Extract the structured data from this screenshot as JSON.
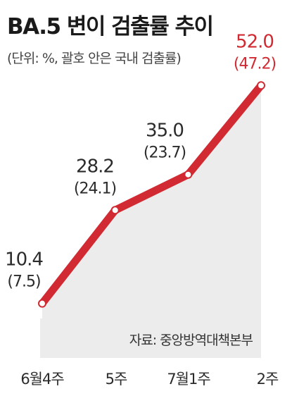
{
  "title": "BA.5 변이 검출률 추이",
  "subtitle": "(단위: %, 괄호 안은 국내 검출률)",
  "source": "자료: 중앙방역대책본부",
  "colors": {
    "line": "#d12a32",
    "area": "#ececec",
    "label": "#2b2b2b",
    "highlight": "#d12a32"
  },
  "chart_data": {
    "type": "area",
    "categories": [
      "6월4주",
      "5주",
      "7월1주",
      "2주"
    ],
    "series": [
      {
        "values": [
          10.4,
          28.2,
          35.0,
          52.0
        ]
      }
    ],
    "secondary_values": [
      7.5,
      24.1,
      23.7,
      47.2
    ],
    "value_labels": [
      "10.4",
      "28.2",
      "35.0",
      "52.0"
    ],
    "secondary_labels": [
      "(7.5)",
      "(24.1)",
      "(23.7)",
      "(47.2)"
    ],
    "ylim": [
      0,
      55
    ],
    "grid": false,
    "legend": "none",
    "highlight_index": 3
  }
}
